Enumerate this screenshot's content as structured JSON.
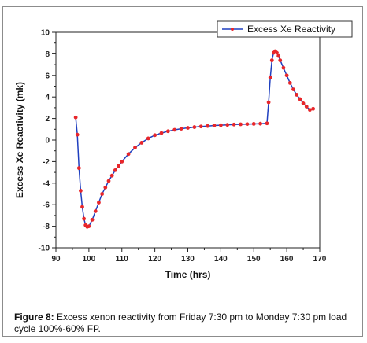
{
  "chart_data": {
    "type": "line",
    "title": "",
    "xlabel": "Time (hrs)",
    "ylabel": "Excess Xe Reactivity (mk)",
    "xlim": [
      90,
      170
    ],
    "ylim": [
      -10,
      10
    ],
    "x_ticks": [
      "90",
      "100",
      "110",
      "120",
      "130",
      "140",
      "150",
      "160",
      "170"
    ],
    "y_ticks": [
      "10",
      "8",
      "6",
      "4",
      "2",
      "0",
      "-2",
      "-4",
      "-6",
      "-8",
      "-10"
    ],
    "grid": false,
    "legend_position": "top-right",
    "series": [
      {
        "name": "Excess Xe Reactivity",
        "line_color": "#1f3fbf",
        "marker_color": "#e8262a",
        "x": [
          96,
          96.5,
          97,
          97.5,
          98,
          98.5,
          99,
          99.5,
          100,
          101,
          102,
          103,
          104,
          105,
          106,
          107,
          108,
          109,
          110,
          112,
          114,
          116,
          118,
          120,
          122,
          124,
          126,
          128,
          130,
          132,
          134,
          136,
          138,
          140,
          142,
          144,
          146,
          148,
          150,
          152,
          154,
          154.5,
          155,
          155.5,
          156,
          156.5,
          157,
          157.5,
          158,
          159,
          160,
          161,
          162,
          163,
          164,
          165,
          166,
          167,
          168
        ],
        "y": [
          2.1,
          0.5,
          -2.6,
          -4.7,
          -6.2,
          -7.3,
          -7.9,
          -8.05,
          -8.0,
          -7.4,
          -6.6,
          -5.8,
          -5.0,
          -4.4,
          -3.8,
          -3.3,
          -2.8,
          -2.4,
          -2.0,
          -1.3,
          -0.7,
          -0.25,
          0.15,
          0.45,
          0.65,
          0.82,
          0.95,
          1.05,
          1.13,
          1.2,
          1.26,
          1.3,
          1.35,
          1.38,
          1.41,
          1.44,
          1.46,
          1.48,
          1.5,
          1.52,
          1.55,
          3.5,
          5.8,
          7.4,
          8.1,
          8.25,
          8.1,
          7.8,
          7.4,
          6.7,
          6.0,
          5.3,
          4.7,
          4.2,
          3.8,
          3.4,
          3.1,
          2.8,
          2.9
        ]
      }
    ]
  },
  "caption": {
    "label": "Figure 8:",
    "text": " Excess xenon reactivity from Friday 7:30 pm to Monday 7:30 pm load cycle 100%-60% FP."
  }
}
